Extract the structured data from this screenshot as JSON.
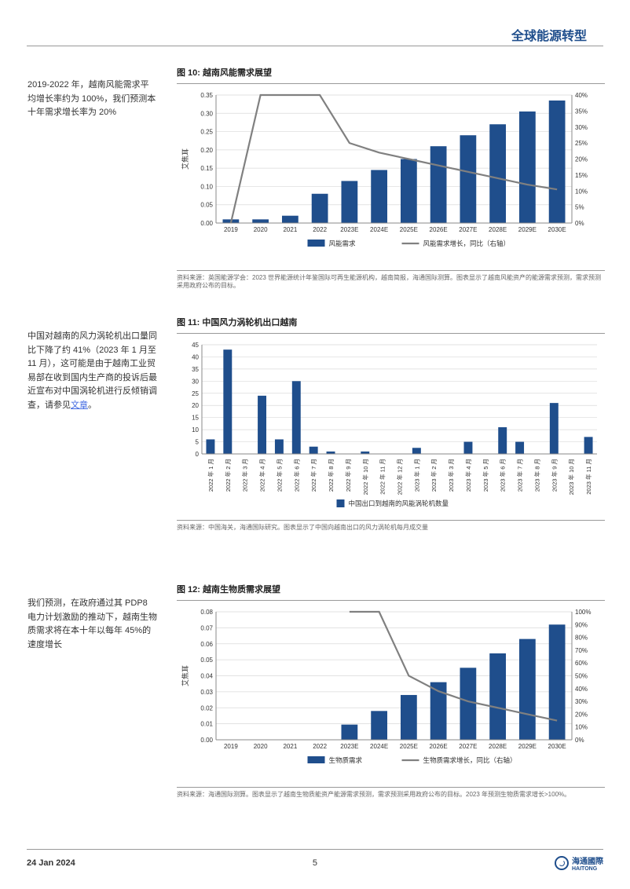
{
  "header": {
    "title": "全球能源转型"
  },
  "side1": "2019-2022 年，越南风能需求平均增长率约为 100%，我们预测本十年需求增长率为 20%",
  "side2_pre": "中国对越南的风力涡轮机出口量同比下降了约 41%（2023 年 1 月至 11 月），这可能是由于越南工业贸易部在收到国内生产商的投诉后最近宣布对中国涡轮机进行反倾销调查，请参见",
  "side2_link": "文章",
  "side2_post": "。",
  "side3": "我们预测，在政府通过其 PDP8 电力计划激励的推动下，越南生物质需求将在本十年以每年 45%的速度增长",
  "chart10": {
    "title": "图 10:  越南风能需求展望",
    "categories": [
      "2019",
      "2020",
      "2021",
      "2022",
      "2023E",
      "2024E",
      "2025E",
      "2026E",
      "2027E",
      "2028E",
      "2029E",
      "2030E"
    ],
    "bars": [
      0.01,
      0.01,
      0.02,
      0.08,
      0.115,
      0.145,
      0.175,
      0.21,
      0.24,
      0.27,
      0.305,
      0.335
    ],
    "line_pct": [
      0,
      40,
      40,
      40,
      25,
      22,
      20,
      18,
      16,
      14,
      12,
      10.5
    ],
    "ylabel": "艾焦耳",
    "yleft_ticks": [
      0.0,
      0.05,
      0.1,
      0.15,
      0.2,
      0.25,
      0.3,
      0.35
    ],
    "yright_ticks": [
      0,
      5,
      10,
      15,
      20,
      25,
      30,
      35,
      40
    ],
    "legend_bar": "风能需求",
    "legend_line": "风能需求增长，同比（右轴）",
    "bar_color": "#1f4e8c",
    "line_color": "#808080",
    "grid_color": "#d9d9d9",
    "source": "资料来源：英国能源学会：2023 世界能源统计年鉴国际可再生能源机构，越南简报，海通国际测算。图表显示了越南风能资产的能源需求预测，需求预测采用政府公布的目标。"
  },
  "chart11": {
    "title": "图 11:  中国风力涡轮机出口越南",
    "categories": [
      "2022 年 1 月",
      "2022 年 2 月",
      "2022 年 3 月",
      "2022 年 4 月",
      "2022 年 5 月",
      "2022 年 6 月",
      "2022 年 7 月",
      "2022 年 8 月",
      "2022 年 9 月",
      "2022 年 10 月",
      "2022 年 11 月",
      "2022 年 12 月",
      "2023 年 1 月",
      "2023 年 2 月",
      "2023 年 3 月",
      "2023 年 4 月",
      "2023 年 5 月",
      "2023 年 6 月",
      "2023 年 7 月",
      "2023 年 8 月",
      "2023 年 9 月",
      "2023 年 10 月",
      "2023 年 11 月"
    ],
    "bars": [
      6,
      43,
      0,
      24,
      6,
      30,
      3,
      1,
      0,
      1,
      0,
      0,
      2.5,
      0,
      0,
      5,
      0,
      11,
      5,
      0,
      21,
      0,
      7
    ],
    "yticks": [
      0,
      5,
      10,
      15,
      20,
      25,
      30,
      35,
      40,
      45
    ],
    "legend_bar": "中国出口到越南的风能涡轮机数量",
    "bar_color": "#1f4e8c",
    "grid_color": "#d9d9d9",
    "source": "资料来源：中国海关，海通国际研究。图表显示了中国向越南出口的风力涡轮机每月成交量"
  },
  "chart12": {
    "title": "图 12:  越南生物质需求展望",
    "categories": [
      "2019",
      "2020",
      "2021",
      "2022",
      "2023E",
      "2024E",
      "2025E",
      "2026E",
      "2027E",
      "2028E",
      "2029E",
      "2030E"
    ],
    "bars": [
      0,
      0,
      0,
      0,
      0.0095,
      0.018,
      0.028,
      0.036,
      0.045,
      0.054,
      0.063,
      0.072
    ],
    "line_pct": [
      null,
      null,
      null,
      null,
      100,
      100,
      50,
      38,
      30,
      25,
      20,
      15
    ],
    "ylabel": "艾焦耳",
    "yleft_ticks": [
      0.0,
      0.01,
      0.02,
      0.03,
      0.04,
      0.05,
      0.06,
      0.07,
      0.08
    ],
    "yright_ticks": [
      0,
      10,
      20,
      30,
      40,
      50,
      60,
      70,
      80,
      90,
      100
    ],
    "legend_bar": "生物质需求",
    "legend_line": "生物质需求增长，同比（右轴）",
    "bar_color": "#1f4e8c",
    "line_color": "#808080",
    "grid_color": "#d9d9d9",
    "source": "资料来源：海通国际测算。图表显示了越南生物质能资产能源需求预测，需求预测采用政府公布的目标。2023 年预测生物质需求增长>100%。"
  },
  "footer": {
    "date": "24 Jan 2024",
    "page": "5",
    "brand": "海通國際",
    "brand_en": "HAITONG"
  }
}
